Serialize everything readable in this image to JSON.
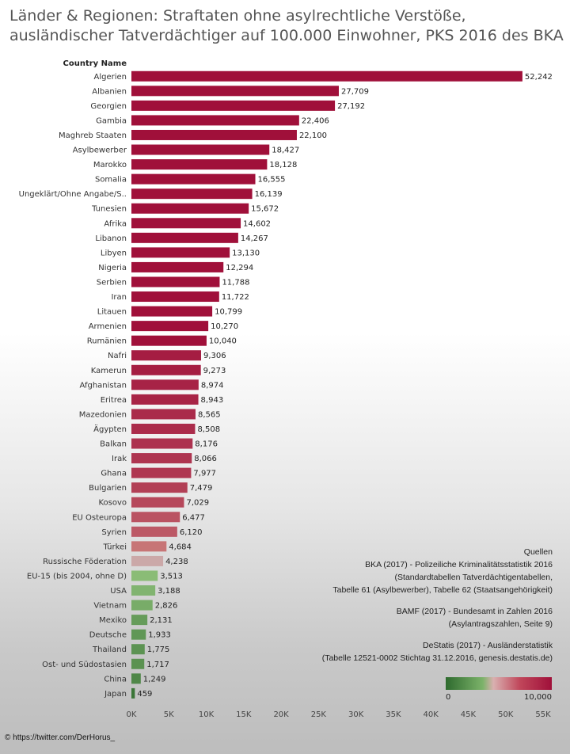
{
  "title": "Länder & Regionen: Straftaten ohne asylrechtliche Verstöße, ausländischer Tatverdächtiger auf 100.000 Einwohner, PKS 2016 des BKA",
  "chart_data": {
    "type": "bar",
    "orientation": "horizontal",
    "category_header": "Country Name",
    "categories": [
      "Algerien",
      "Albanien",
      "Georgien",
      "Gambia",
      "Maghreb Staaten",
      "Asylbewerber",
      "Marokko",
      "Somalia",
      "Ungeklärt/Ohne Angabe/S..",
      "Tunesien",
      "Afrika",
      "Libanon",
      "Libyen",
      "Nigeria",
      "Serbien",
      "Iran",
      "Litauen",
      "Armenien",
      "Rumänien",
      "Nafri",
      "Kamerun",
      "Afghanistan",
      "Eritrea",
      "Mazedonien",
      "Ägypten",
      "Balkan",
      "Irak",
      "Ghana",
      "Bulgarien",
      "Kosovo",
      "EU Osteuropa",
      "Syrien",
      "Türkei",
      "Russische Föderation",
      "EU-15 (bis 2004, ohne D)",
      "USA",
      "Vietnam",
      "Mexiko",
      "Deutsche",
      "Thailand",
      "Ost- und Südostasien",
      "China",
      "Japan"
    ],
    "values": [
      52242,
      27709,
      27192,
      22406,
      22100,
      18427,
      18128,
      16555,
      16139,
      15672,
      14602,
      14267,
      13130,
      12294,
      11788,
      11722,
      10799,
      10270,
      10040,
      9306,
      9273,
      8974,
      8943,
      8565,
      8508,
      8176,
      8066,
      7977,
      7479,
      7029,
      6477,
      6120,
      4684,
      4238,
      3513,
      3188,
      2826,
      2131,
      1933,
      1775,
      1717,
      1249,
      459
    ],
    "value_labels": [
      "52,242",
      "27,709",
      "27,192",
      "22,406",
      "22,100",
      "18,427",
      "18,128",
      "16,555",
      "16,139",
      "15,672",
      "14,602",
      "14,267",
      "13,130",
      "12,294",
      "11,788",
      "11,722",
      "10,799",
      "10,270",
      "10,040",
      "9,306",
      "9,273",
      "8,974",
      "8,943",
      "8,565",
      "8,508",
      "8,176",
      "8,066",
      "7,977",
      "7,479",
      "7,029",
      "6,477",
      "6,120",
      "4,684",
      "4,238",
      "3,513",
      "3,188",
      "2,826",
      "2,131",
      "1,933",
      "1,775",
      "1,717",
      "1,249",
      "459"
    ],
    "xlim": [
      0,
      55000
    ],
    "xticks": [
      0,
      5000,
      10000,
      15000,
      20000,
      25000,
      30000,
      35000,
      40000,
      45000,
      50000,
      55000
    ],
    "xtick_labels": [
      "0K",
      "5K",
      "10K",
      "15K",
      "20K",
      "25K",
      "30K",
      "35K",
      "40K",
      "45K",
      "50K",
      "55K"
    ],
    "grid": false,
    "color_scale": {
      "min_label": "0",
      "max_label": "10,000",
      "low_color": "#2e6a2e",
      "mid_color": "#d9b0b0",
      "high_color": "#a0103a",
      "midpoint": 4500
    }
  },
  "sources": {
    "heading": "Quellen",
    "lines1": [
      "BKA (2017) - Polizeiliche Kriminalitätsstatistik 2016",
      "(Standardtabellen Tatverdächtigentabellen,",
      "Tabelle 61 (Asylbewerber), Tabelle 62 (Staatsangehörigkeit)"
    ],
    "lines2": [
      "BAMF (2017) - Bundesamt in Zahlen 2016",
      "(Asylantragszahlen, Seite 9)"
    ],
    "lines3": [
      "DeStatis (2017) -  Ausländerstatistik",
      "(Tabelle 12521-0002 Stichtag 31.12.2016,  genesis.destatis.de)"
    ]
  },
  "footer": "© https://twitter.com/DerHorus_"
}
